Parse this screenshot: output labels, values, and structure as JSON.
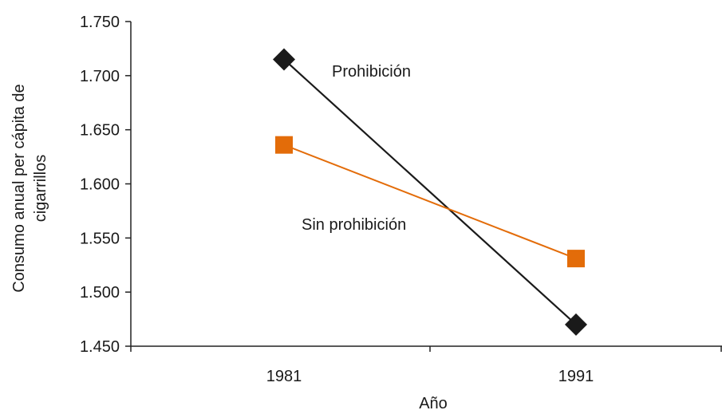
{
  "chart_data": {
    "type": "line",
    "title": "",
    "xlabel": "Año",
    "ylabel_lines": [
      "Consumo anual per cápita de",
      "cigarrillos"
    ],
    "categories": [
      "1981",
      "1991"
    ],
    "yticks": [
      "1.450",
      "1.500",
      "1.550",
      "1.600",
      "1.650",
      "1.700",
      "1.750"
    ],
    "ylim": [
      1450,
      1750
    ],
    "grid": false,
    "series": [
      {
        "name": "Prohibición",
        "values": [
          1715,
          1470
        ],
        "color": "#1a1a1a",
        "marker": "diamond"
      },
      {
        "name": "Sin prohibición",
        "values": [
          1636,
          1531
        ],
        "color": "#e36c09",
        "marker": "square"
      }
    ]
  }
}
